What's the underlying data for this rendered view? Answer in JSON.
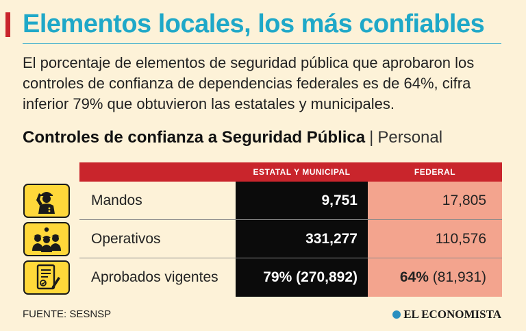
{
  "header": {
    "title": "Elementos locales, los más confiables",
    "subtitle": "El porcentaje de elementos de seguridad pública que aprobaron los controles de confianza de dependencias federales es de 64%, cifra inferior 79% que obtuvieron las estatales y municipales."
  },
  "colors": {
    "accent_red": "#c9252c",
    "title_blue": "#1fa8c8",
    "state_column": "#0b0b0b",
    "federal_column": "#f3a48e",
    "icon_yellow": "#ffd83a",
    "background": "#fdf2d8"
  },
  "chart_data": {
    "type": "table",
    "title": "Controles de confianza a Seguridad Pública",
    "unit": "Personal",
    "columns": [
      "ESTATAL  Y  MUNICIPAL",
      "FEDERAL"
    ],
    "rows": [
      {
        "label": "Mandos",
        "icon": "saluting-officer-icon",
        "state": "9,751",
        "federal": "17,805",
        "state_value": 9751,
        "federal_value": 17805
      },
      {
        "label": "Operativos",
        "icon": "police-officers-icon",
        "state": "331,277",
        "federal": "110,576",
        "state_value": 331277,
        "federal_value": 110576
      },
      {
        "label": "Aprobados vigentes",
        "icon": "approved-document-icon",
        "state_pct": "79%",
        "state_count": "(270,892)",
        "federal_pct": "64%",
        "federal_count": "(81,931)",
        "state_value": 270892,
        "federal_value": 81931
      }
    ]
  },
  "footer": {
    "source": "FUENTE: SESNSP",
    "brand": "EL ECONOMISTA"
  }
}
